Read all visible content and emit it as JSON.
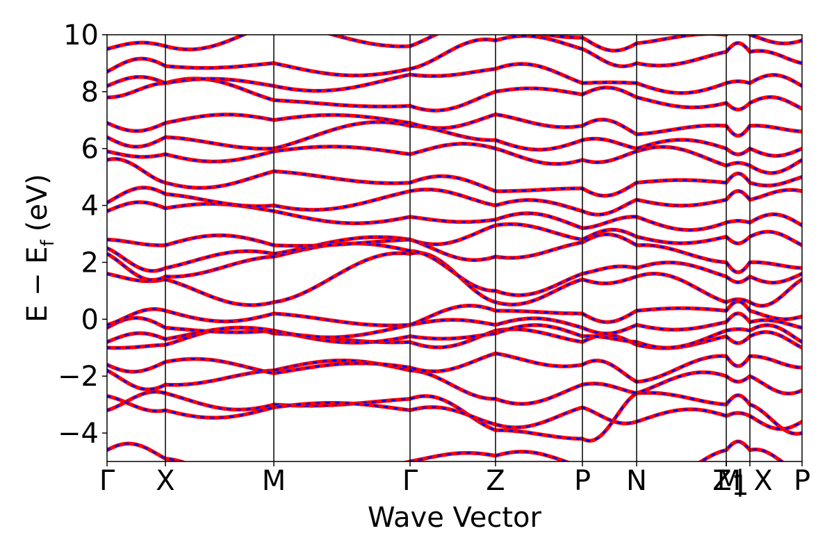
{
  "chart_data": {
    "type": "line",
    "title": "",
    "xlabel": "Wave Vector",
    "ylabel": "E − E",
    "ylabel_subscript": "f",
    "ylabel_unit": "(eV)",
    "ylim": [
      -5,
      10
    ],
    "grid": false,
    "y_ticks": [
      -4,
      -2,
      0,
      2,
      4,
      6,
      8,
      10
    ],
    "y_tick_labels": [
      "−4",
      "−2",
      "0",
      "2",
      "4",
      "6",
      "8",
      "10"
    ],
    "kpath": [
      {
        "label": "Γ",
        "k": 0.0
      },
      {
        "label": "X",
        "k": 0.084
      },
      {
        "label": "M",
        "k": 0.24
      },
      {
        "label": "Γ",
        "k": 0.436
      },
      {
        "label": "Z",
        "k": 0.559
      },
      {
        "label": "P",
        "k": 0.684
      },
      {
        "label": "N",
        "k": 0.762
      },
      {
        "label": "Z",
        "k": 0.891
      },
      {
        "label": "M",
        "k": 0.891
      },
      {
        "label": "1",
        "k": 0.891
      },
      {
        "label": "| X",
        "k": 0.925
      },
      {
        "label": "P",
        "k": 1.0
      }
    ],
    "series_styles": [
      {
        "color": "#ff0000",
        "style": "solid"
      },
      {
        "color": "#0000ff",
        "style": "dotted"
      }
    ],
    "bands": [
      {
        "values": [
          -4.6,
          -4.9,
          -6.2,
          -5.0,
          -4.8,
          -5.2,
          -5.9,
          -4.6,
          -4.6,
          -5.4,
          -5.6
        ]
      },
      {
        "values": [
          -3.2,
          -2.6,
          -3.0,
          -2.8,
          -3.9,
          -4.2,
          -2.6,
          -3.0,
          -3.0,
          -4.0,
          -4.2
        ]
      },
      {
        "values": [
          -2.7,
          -3.2,
          -3.1,
          -3.2,
          -3.7,
          -3.1,
          -3.6,
          -3.4,
          -3.4,
          -3.6,
          -3.2
        ]
      },
      {
        "values": [
          -1.8,
          -2.3,
          -1.8,
          -1.8,
          -2.8,
          -2.3,
          -2.6,
          -2.0,
          -2.0,
          -2.5,
          -2.3
        ]
      },
      {
        "values": [
          -1.6,
          -1.5,
          -1.9,
          -1.7,
          -1.2,
          -1.6,
          -2.2,
          -1.3,
          -1.3,
          -1.7,
          -1.5
        ]
      },
      {
        "values": [
          -1.0,
          -0.9,
          -0.5,
          -0.8,
          -0.4,
          -0.8,
          -0.9,
          -0.6,
          -0.6,
          -1.0,
          -0.8
        ]
      },
      {
        "values": [
          -0.8,
          -0.7,
          -0.4,
          -0.6,
          -0.5,
          -0.6,
          -0.8,
          -0.4,
          -0.4,
          -0.8,
          -0.7
        ]
      },
      {
        "values": [
          -0.3,
          -0.3,
          -0.4,
          -0.2,
          -0.2,
          -0.3,
          -0.2,
          -0.1,
          -0.1,
          -0.3,
          -0.2
        ]
      },
      {
        "values": [
          -0.2,
          0.3,
          0.2,
          -0.2,
          0.3,
          0.2,
          0.3,
          0.3,
          0.3,
          0.1,
          0.0
        ]
      },
      {
        "values": [
          1.6,
          1.4,
          0.6,
          2.3,
          0.6,
          1.4,
          1.5,
          0.6,
          0.6,
          1.4,
          1.4
        ]
      },
      {
        "values": [
          2.3,
          1.5,
          2.2,
          2.4,
          1.0,
          1.6,
          1.8,
          1.5,
          1.5,
          1.6,
          1.6
        ]
      },
      {
        "values": [
          2.5,
          1.8,
          2.3,
          2.8,
          2.2,
          2.7,
          2.6,
          2.0,
          2.0,
          1.8,
          1.8
        ]
      },
      {
        "values": [
          2.8,
          2.6,
          2.6,
          2.8,
          3.3,
          2.8,
          2.9,
          2.9,
          2.9,
          2.6,
          2.6
        ]
      },
      {
        "values": [
          3.8,
          3.9,
          3.8,
          3.6,
          3.5,
          3.2,
          3.6,
          3.4,
          3.4,
          3.3,
          3.4
        ]
      },
      {
        "values": [
          4.1,
          4.4,
          4.0,
          4.5,
          4.0,
          3.8,
          4.2,
          4.2,
          4.2,
          4.5,
          4.6
        ]
      },
      {
        "values": [
          5.6,
          4.8,
          5.2,
          4.8,
          4.5,
          4.6,
          4.8,
          4.8,
          4.8,
          5.0,
          5.2
        ]
      },
      {
        "values": [
          5.9,
          5.8,
          5.9,
          5.8,
          6.0,
          5.6,
          5.9,
          5.4,
          5.4,
          5.6,
          5.7
        ]
      },
      {
        "values": [
          6.4,
          6.4,
          6.0,
          6.8,
          6.3,
          6.3,
          6.0,
          6.0,
          6.0,
          6.0,
          6.1
        ]
      },
      {
        "values": [
          6.9,
          6.9,
          7.0,
          6.9,
          7.2,
          6.8,
          6.5,
          6.8,
          6.8,
          6.6,
          6.8
        ]
      },
      {
        "values": [
          7.8,
          8.3,
          7.7,
          7.5,
          8.0,
          7.9,
          7.8,
          7.6,
          7.6,
          7.4,
          7.4
        ]
      },
      {
        "values": [
          8.2,
          8.3,
          8.2,
          8.6,
          8.8,
          8.3,
          8.3,
          8.3,
          8.3,
          8.2,
          8.2
        ]
      },
      {
        "values": [
          8.7,
          8.9,
          9.0,
          8.8,
          9.8,
          9.5,
          9.0,
          9.4,
          9.4,
          9.0,
          9.6
        ]
      },
      {
        "values": [
          9.5,
          9.6,
          10.4,
          9.6,
          10.2,
          9.9,
          9.7,
          10.0,
          10.0,
          9.8,
          9.9
        ]
      }
    ]
  }
}
